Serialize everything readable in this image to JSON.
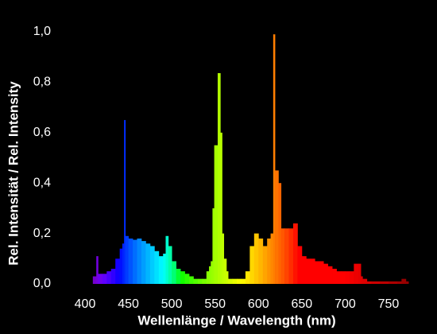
{
  "chart_data": {
    "type": "bar",
    "xlabel": "Wellenlänge / Wavelength (nm)",
    "ylabel": "Rel. Intensität / Rel. Intensity",
    "x": [
      409,
      413,
      415,
      420,
      425,
      430,
      435,
      440,
      443,
      445,
      446.5,
      450,
      455,
      460,
      465,
      470,
      475,
      480,
      485,
      490,
      493,
      496,
      500,
      505,
      510,
      515,
      520,
      525,
      530,
      535,
      540,
      543,
      545,
      547,
      549,
      553,
      556,
      558,
      560,
      563,
      565,
      570,
      575,
      580,
      585,
      590,
      595,
      600,
      605,
      610,
      614,
      617,
      619,
      623,
      626,
      630,
      635,
      640,
      645,
      650,
      655,
      660,
      665,
      670,
      675,
      680,
      685,
      690,
      695,
      700,
      705,
      710,
      715,
      718,
      720,
      725,
      730,
      740,
      750,
      760,
      765,
      770
    ],
    "values": [
      0.03,
      0.11,
      0.04,
      0.04,
      0.05,
      0.06,
      0.1,
      0.14,
      0.16,
      0.65,
      0.19,
      0.18,
      0.175,
      0.18,
      0.17,
      0.16,
      0.15,
      0.13,
      0.11,
      0.12,
      0.19,
      0.15,
      0.09,
      0.06,
      0.05,
      0.04,
      0.03,
      0.02,
      0.02,
      0.02,
      0.05,
      0.07,
      0.09,
      0.3,
      0.55,
      0.836,
      0.6,
      0.2,
      0.1,
      0.05,
      0.02,
      0.02,
      0.02,
      0.02,
      0.05,
      0.15,
      0.2,
      0.18,
      0.15,
      0.18,
      0.2,
      0.99,
      0.45,
      0.4,
      0.22,
      0.22,
      0.22,
      0.24,
      0.15,
      0.11,
      0.1,
      0.1,
      0.09,
      0.09,
      0.08,
      0.07,
      0.06,
      0.05,
      0.05,
      0.05,
      0.05,
      0.08,
      0.08,
      0.03,
      0.02,
      0.01,
      0.01,
      0.01,
      0.01,
      0.01,
      0.02,
      0.01
    ],
    "xlim": [
      400,
      775
    ],
    "xticks": [
      400,
      450,
      500,
      550,
      600,
      650,
      700,
      750
    ],
    "ylim": [
      0,
      1.05
    ],
    "yticks": [
      {
        "value": 0,
        "label": "0,0"
      },
      {
        "value": 0.2,
        "label": "0,2"
      },
      {
        "value": 0.4,
        "label": "0,4"
      },
      {
        "value": 0.6,
        "label": "0,6"
      },
      {
        "value": 0.8,
        "label": "0,8"
      },
      {
        "value": 1.0,
        "label": "1,0"
      }
    ],
    "grid": false
  }
}
